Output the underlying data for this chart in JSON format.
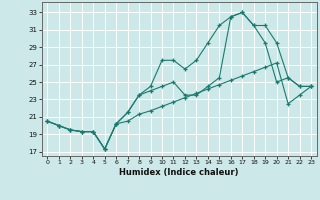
{
  "xlabel": "Humidex (Indice chaleur)",
  "bg_color": "#cce8e8",
  "line_color": "#1a7a6e",
  "grid_color": "#ffffff",
  "xlim": [
    -0.5,
    23.5
  ],
  "ylim": [
    16.5,
    34.2
  ],
  "xticks": [
    0,
    1,
    2,
    3,
    4,
    5,
    6,
    7,
    8,
    9,
    10,
    11,
    12,
    13,
    14,
    15,
    16,
    17,
    18,
    19,
    20,
    21,
    22,
    23
  ],
  "yticks": [
    17,
    19,
    21,
    23,
    25,
    27,
    29,
    31,
    33
  ],
  "line1_x": [
    0,
    1,
    2,
    3,
    4,
    5,
    6,
    7,
    8,
    9,
    10,
    11,
    12,
    13,
    14,
    15,
    16,
    17,
    18,
    19,
    20,
    21,
    22,
    23
  ],
  "line1_y": [
    20.5,
    20.0,
    19.5,
    19.3,
    19.3,
    17.3,
    20.2,
    21.5,
    23.5,
    24.5,
    27.5,
    27.5,
    26.5,
    27.5,
    29.5,
    31.5,
    32.5,
    33.0,
    31.5,
    31.5,
    29.5,
    25.5,
    24.5,
    24.5
  ],
  "line2_x": [
    0,
    1,
    2,
    3,
    4,
    5,
    6,
    7,
    8,
    9,
    10,
    11,
    12,
    13,
    14,
    15,
    16,
    17,
    18,
    19,
    20,
    21,
    22,
    23
  ],
  "line2_y": [
    20.5,
    20.0,
    19.5,
    19.3,
    19.3,
    17.3,
    20.2,
    21.5,
    23.5,
    24.0,
    24.5,
    25.0,
    23.5,
    23.5,
    24.5,
    25.5,
    32.5,
    33.0,
    31.5,
    29.5,
    25.0,
    25.5,
    24.5,
    24.5
  ],
  "line3_x": [
    0,
    1,
    2,
    3,
    4,
    5,
    6,
    7,
    8,
    9,
    10,
    11,
    12,
    13,
    14,
    15,
    16,
    17,
    18,
    19,
    20,
    21,
    22,
    23
  ],
  "line3_y": [
    20.5,
    20.0,
    19.5,
    19.3,
    19.3,
    17.3,
    20.2,
    20.5,
    21.3,
    21.7,
    22.2,
    22.7,
    23.2,
    23.7,
    24.2,
    24.7,
    25.2,
    25.7,
    26.2,
    26.7,
    27.2,
    22.5,
    23.5,
    24.5
  ]
}
